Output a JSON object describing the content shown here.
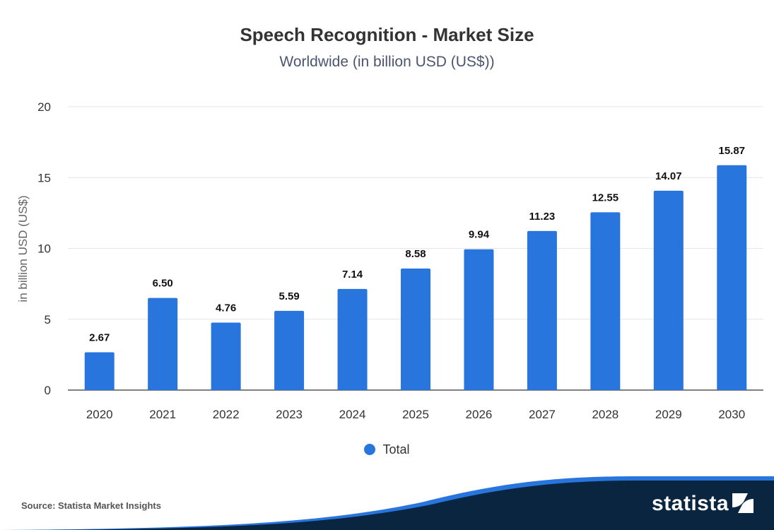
{
  "chart_data": {
    "type": "bar",
    "title": "Speech Recognition - Market Size",
    "subtitle": "Worldwide (in billion USD (US$))",
    "xlabel": "",
    "ylabel": "in billion USD (US$)",
    "categories": [
      "2020",
      "2021",
      "2022",
      "2023",
      "2024",
      "2025",
      "2026",
      "2027",
      "2028",
      "2029",
      "2030"
    ],
    "series": [
      {
        "name": "Total",
        "values": [
          2.67,
          6.5,
          4.76,
          5.59,
          7.14,
          8.58,
          9.94,
          11.23,
          12.55,
          14.07,
          15.87
        ]
      }
    ],
    "data_labels": [
      "2.67",
      "6.50",
      "4.76",
      "5.59",
      "7.14",
      "8.58",
      "9.94",
      "11.23",
      "12.55",
      "14.07",
      "15.87"
    ],
    "ylim": [
      0,
      20
    ],
    "yticks": [
      0,
      5,
      10,
      15,
      20
    ],
    "grid": true,
    "legend_position": "bottom",
    "colors": {
      "bar": "#2876dd",
      "grid": "#e6e6e6",
      "axis": "#333333"
    }
  },
  "source": "Source: Statista Market Insights",
  "brand": {
    "name": "statista",
    "colors": {
      "dark": "#0a2540",
      "accent": "#2876dd"
    }
  }
}
